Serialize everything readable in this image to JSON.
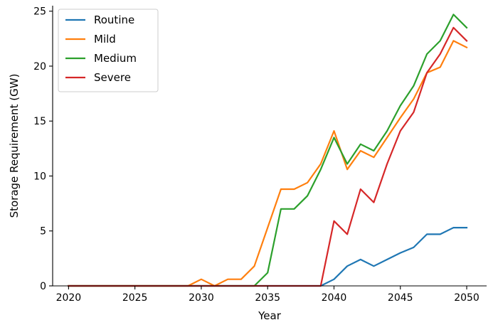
{
  "chart_data": {
    "type": "line",
    "title": "",
    "xlabel": "Year",
    "ylabel": "Storage Requirement (GW)",
    "xlim": [
      2018.8,
      2051.5
    ],
    "ylim": [
      0,
      25.5
    ],
    "xticks": [
      2020,
      2025,
      2030,
      2035,
      2040,
      2045,
      2050
    ],
    "yticks": [
      0,
      5,
      10,
      15,
      20,
      25
    ],
    "grid": false,
    "legend": "top-left",
    "x": [
      2020,
      2021,
      2022,
      2023,
      2024,
      2025,
      2026,
      2027,
      2028,
      2029,
      2030,
      2031,
      2032,
      2033,
      2034,
      2035,
      2036,
      2037,
      2038,
      2039,
      2040,
      2041,
      2042,
      2043,
      2044,
      2045,
      2046,
      2047,
      2048,
      2049,
      2050
    ],
    "series": [
      {
        "name": "Routine",
        "color": "#1f77b4",
        "values": [
          0,
          0,
          0,
          0,
          0,
          0,
          0,
          0,
          0,
          0,
          0,
          0,
          0,
          0,
          0,
          0,
          0,
          0,
          0,
          0,
          0.6,
          1.8,
          2.4,
          1.8,
          2.4,
          3.0,
          3.5,
          4.7,
          4.7,
          5.3,
          5.3
        ]
      },
      {
        "name": "Mild",
        "color": "#ff7f0e",
        "values": [
          0,
          0,
          0,
          0,
          0,
          0,
          0,
          0,
          0,
          0,
          0.6,
          0,
          0.6,
          0.6,
          1.8,
          5.3,
          8.8,
          8.8,
          9.4,
          11.1,
          14.1,
          10.6,
          12.3,
          11.7,
          13.5,
          15.3,
          17.0,
          19.4,
          19.9,
          22.3,
          21.7
        ]
      },
      {
        "name": "Medium",
        "color": "#2ca02c",
        "values": [
          0,
          0,
          0,
          0,
          0,
          0,
          0,
          0,
          0,
          0,
          0,
          0,
          0,
          0,
          0,
          1.2,
          7.0,
          7.0,
          8.2,
          10.6,
          13.5,
          11.1,
          12.9,
          12.3,
          14.1,
          16.4,
          18.2,
          21.1,
          22.3,
          24.7,
          23.5
        ]
      },
      {
        "name": "Severe",
        "color": "#d62728",
        "values": [
          0,
          0,
          0,
          0,
          0,
          0,
          0,
          0,
          0,
          0,
          0,
          0,
          0,
          0,
          0,
          0,
          0,
          0,
          0,
          0,
          5.9,
          4.7,
          8.8,
          7.6,
          11.1,
          14.1,
          15.8,
          19.4,
          21.1,
          23.5,
          22.3
        ]
      }
    ]
  }
}
